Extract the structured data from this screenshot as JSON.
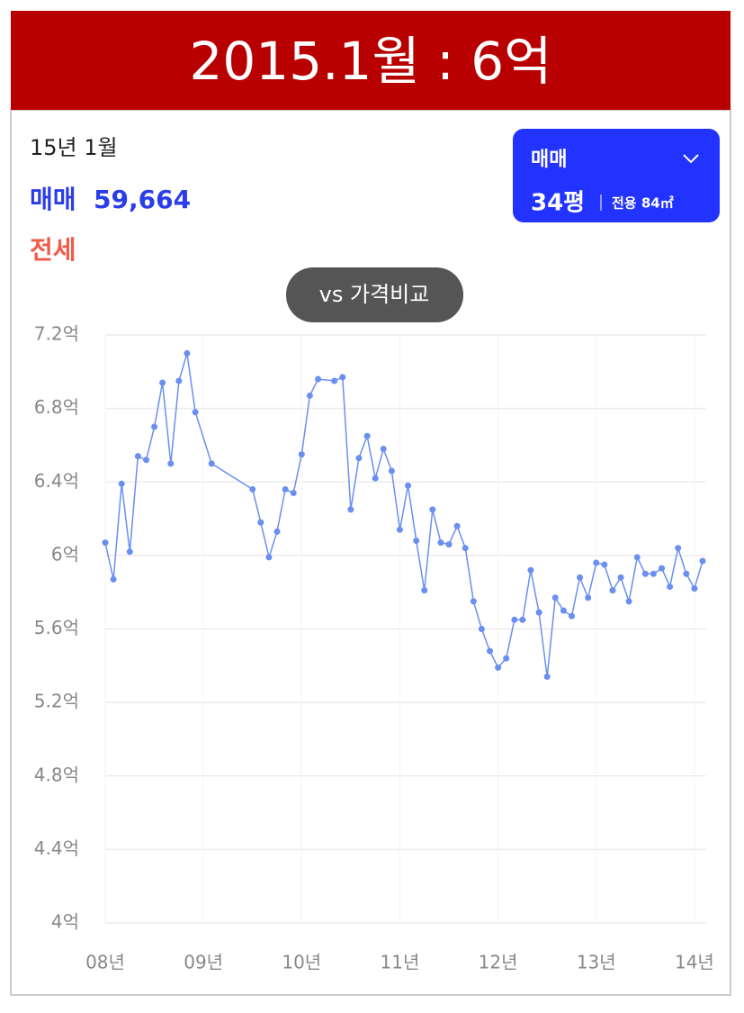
{
  "header": {
    "title": "2015.1월 : 6억"
  },
  "info": {
    "date": "15년 1월",
    "sale_label": "매매",
    "sale_value": "59,664",
    "jeonse_label": "전세"
  },
  "dropdown": {
    "type": "매매",
    "size": "34평",
    "area": "전용 84㎡"
  },
  "button": {
    "label": "vs 가격비교"
  },
  "chart_data": {
    "type": "line",
    "color": "#6a8ff0",
    "x": [
      8,
      8.083,
      8.167,
      8.25,
      8.333,
      8.417,
      8.5,
      8.583,
      8.667,
      8.75,
      8.833,
      8.917,
      9.083,
      9.5,
      9.583,
      9.667,
      9.75,
      9.833,
      9.917,
      10,
      10.083,
      10.167,
      10.333,
      10.417,
      10.5,
      10.583,
      10.667,
      10.75,
      10.833,
      10.917,
      11,
      11.083,
      11.167,
      11.25,
      11.333,
      11.417,
      11.5,
      11.583,
      11.667,
      11.75,
      11.833,
      11.917,
      12,
      12.083,
      12.167,
      12.25,
      12.333,
      12.417,
      12.5,
      12.583,
      12.667,
      12.75,
      12.833,
      12.917,
      13,
      13.083,
      13.167,
      13.25,
      13.333,
      13.417,
      13.5,
      13.583,
      13.667,
      13.75,
      13.833,
      13.917,
      14,
      14.083
    ],
    "values": [
      6.07,
      5.87,
      6.39,
      6.02,
      6.54,
      6.52,
      6.7,
      6.94,
      6.5,
      6.95,
      7.1,
      6.78,
      6.5,
      6.36,
      6.18,
      5.99,
      6.13,
      6.36,
      6.34,
      6.55,
      6.87,
      6.96,
      6.95,
      6.97,
      6.25,
      6.53,
      6.65,
      6.42,
      6.58,
      6.46,
      6.14,
      6.38,
      6.08,
      5.81,
      6.25,
      6.07,
      6.06,
      6.16,
      6.04,
      5.75,
      5.6,
      5.48,
      5.39,
      5.44,
      5.65,
      5.65,
      5.92,
      5.69,
      5.34,
      5.77,
      5.7,
      5.67,
      5.88,
      5.77,
      5.96,
      5.95,
      5.81,
      5.88,
      5.75,
      5.99,
      5.9,
      5.9,
      5.93,
      5.83,
      6.04,
      5.9,
      5.82,
      5.97
    ],
    "xlim": [
      8,
      14.12
    ],
    "xticks": [
      {
        "value": 8,
        "label": "08년"
      },
      {
        "value": 9,
        "label": "09년"
      },
      {
        "value": 10,
        "label": "10년"
      },
      {
        "value": 11,
        "label": "11년"
      },
      {
        "value": 12,
        "label": "12년"
      },
      {
        "value": 13,
        "label": "13년"
      },
      {
        "value": 14,
        "label": "14년"
      }
    ],
    "ylim": [
      4,
      7.2
    ],
    "yticks": [
      {
        "value": 4,
        "label": "4억"
      },
      {
        "value": 4.4,
        "label": "4.4억"
      },
      {
        "value": 4.8,
        "label": "4.8억"
      },
      {
        "value": 5.2,
        "label": "5.2억"
      },
      {
        "value": 5.6,
        "label": "5.6억"
      },
      {
        "value": 6,
        "label": "6억"
      },
      {
        "value": 6.4,
        "label": "6.4억"
      },
      {
        "value": 6.8,
        "label": "6.8억"
      },
      {
        "value": 7.2,
        "label": "7.2억"
      }
    ],
    "grid": true
  }
}
